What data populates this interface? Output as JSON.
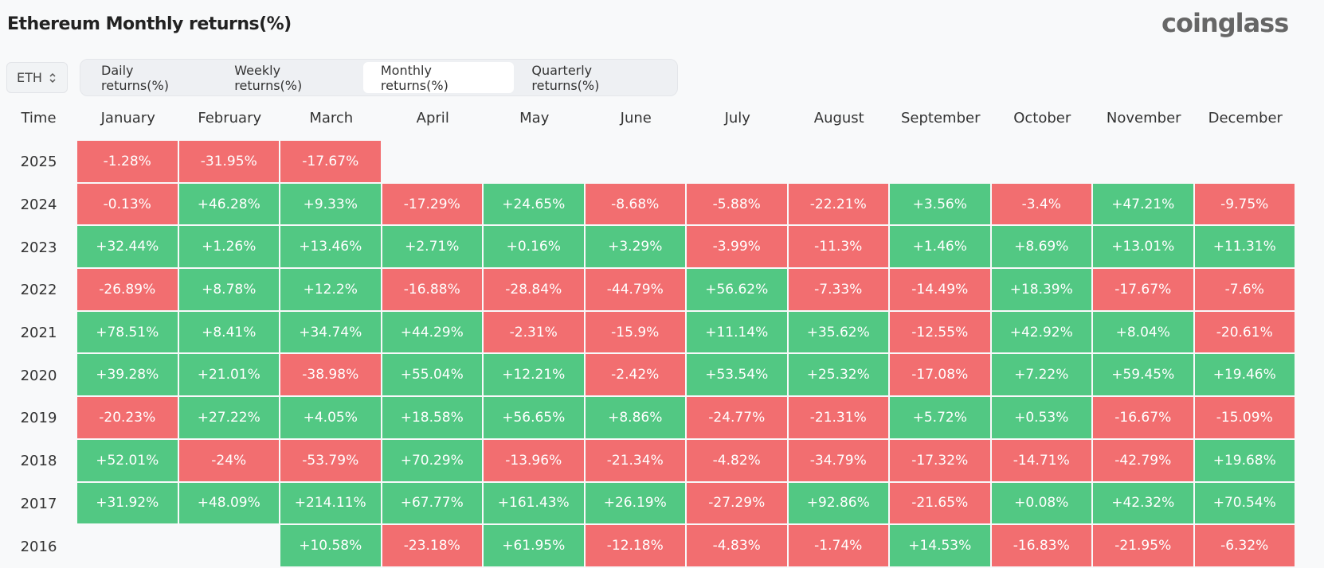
{
  "header": {
    "title": "Ethereum Monthly returns(%)",
    "logo": "coinglass"
  },
  "selector": {
    "label": "ETH"
  },
  "tabs": [
    "Daily returns(%)",
    "Weekly returns(%)",
    "Monthly returns(%)",
    "Quarterly returns(%)"
  ],
  "table": {
    "columns": [
      "Time",
      "January",
      "February",
      "March",
      "April",
      "May",
      "June",
      "July",
      "August",
      "September",
      "October",
      "November",
      "December"
    ],
    "rows": [
      [
        "2025",
        "-1.28%",
        "-31.95%",
        "-17.67%",
        null,
        null,
        null,
        null,
        null,
        null,
        null,
        null,
        null
      ],
      [
        "2024",
        "-0.13%",
        "+46.28%",
        "+9.33%",
        "-17.29%",
        "+24.65%",
        "-8.68%",
        "-5.88%",
        "-22.21%",
        "+3.56%",
        "-3.4%",
        "+47.21%",
        "-9.75%"
      ],
      [
        "2023",
        "+32.44%",
        "+1.26%",
        "+13.46%",
        "+2.71%",
        "+0.16%",
        "+3.29%",
        "-3.99%",
        "-11.3%",
        "+1.46%",
        "+8.69%",
        "+13.01%",
        "+11.31%"
      ],
      [
        "2022",
        "-26.89%",
        "+8.78%",
        "+12.2%",
        "-16.88%",
        "-28.84%",
        "-44.79%",
        "+56.62%",
        "-7.33%",
        "-14.49%",
        "+18.39%",
        "-17.67%",
        "-7.6%"
      ],
      [
        "2021",
        "+78.51%",
        "+8.41%",
        "+34.74%",
        "+44.29%",
        "-2.31%",
        "-15.9%",
        "+11.14%",
        "+35.62%",
        "-12.55%",
        "+42.92%",
        "+8.04%",
        "-20.61%"
      ],
      [
        "2020",
        "+39.28%",
        "+21.01%",
        "-38.98%",
        "+55.04%",
        "+12.21%",
        "-2.42%",
        "+53.54%",
        "+25.32%",
        "-17.08%",
        "+7.22%",
        "+59.45%",
        "+19.46%"
      ],
      [
        "2019",
        "-20.23%",
        "+27.22%",
        "+4.05%",
        "+18.58%",
        "+56.65%",
        "+8.86%",
        "-24.77%",
        "-21.31%",
        "+5.72%",
        "+0.53%",
        "-16.67%",
        "-15.09%"
      ],
      [
        "2018",
        "+52.01%",
        "-24%",
        "-53.79%",
        "+70.29%",
        "-13.96%",
        "-21.34%",
        "-4.82%",
        "-34.79%",
        "-17.32%",
        "-14.71%",
        "-42.79%",
        "+19.68%"
      ],
      [
        "2017",
        "+31.92%",
        "+48.09%",
        "+214.11%",
        "+67.77%",
        "+161.43%",
        "+26.19%",
        "-27.29%",
        "+92.86%",
        "-21.65%",
        "+0.08%",
        "+42.32%",
        "+70.54%"
      ],
      [
        "2016",
        null,
        null,
        "+10.58%",
        "-23.18%",
        "+61.95%",
        "-12.18%",
        "-4.83%",
        "-1.74%",
        "+14.53%",
        "-16.83%",
        "-21.95%",
        "-6.32%"
      ]
    ]
  }
}
